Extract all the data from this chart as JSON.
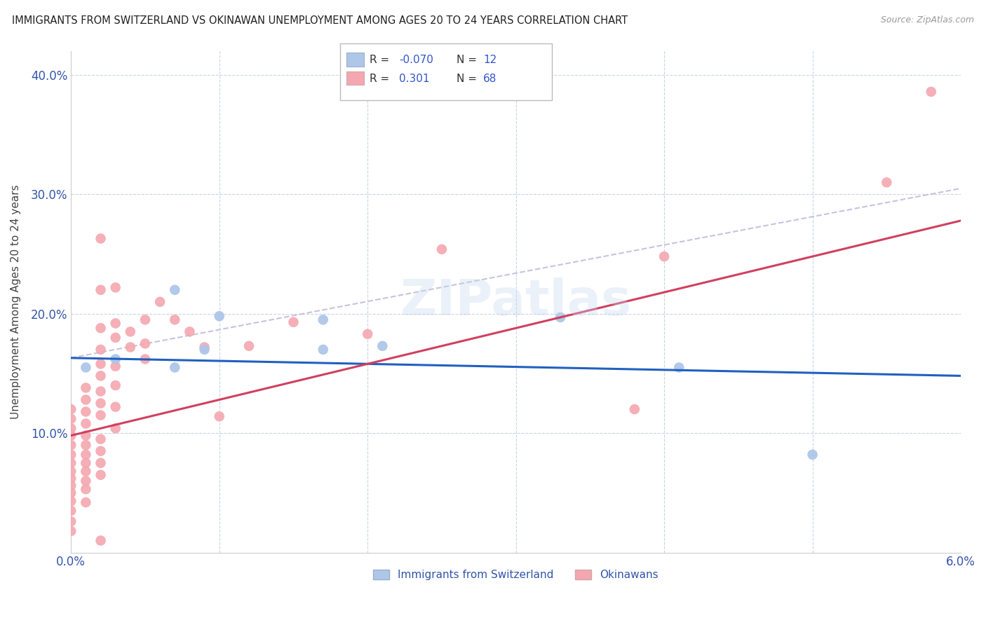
{
  "title": "IMMIGRANTS FROM SWITZERLAND VS OKINAWAN UNEMPLOYMENT AMONG AGES 20 TO 24 YEARS CORRELATION CHART",
  "source": "Source: ZipAtlas.com",
  "ylabel": "Unemployment Among Ages 20 to 24 years",
  "xlim": [
    0.0,
    0.06
  ],
  "ylim": [
    0.0,
    0.42
  ],
  "x_tick_labels": [
    "0.0%",
    "",
    "",
    "",
    "",
    "",
    "6.0%"
  ],
  "y_tick_labels": [
    "",
    "10.0%",
    "20.0%",
    "30.0%",
    "40.0%"
  ],
  "color_swiss": "#aec6e8",
  "color_okinawa": "#f4a7b0",
  "color_swiss_line": "#2060c0",
  "color_okinawa_line": "#d04060",
  "color_dashed": "#c0b8d8",
  "watermark": "ZIPatlas",
  "swiss_line": [
    0.0,
    0.06,
    0.163,
    0.148
  ],
  "okinawa_line": [
    0.0,
    0.06,
    0.098,
    0.278
  ],
  "dashed_line": [
    0.0,
    0.06,
    0.163,
    0.305
  ],
  "swiss_scatter": [
    [
      0.001,
      0.155
    ],
    [
      0.003,
      0.162
    ],
    [
      0.007,
      0.155
    ],
    [
      0.007,
      0.22
    ],
    [
      0.009,
      0.17
    ],
    [
      0.01,
      0.198
    ],
    [
      0.017,
      0.17
    ],
    [
      0.017,
      0.195
    ],
    [
      0.021,
      0.173
    ],
    [
      0.033,
      0.197
    ],
    [
      0.041,
      0.155
    ],
    [
      0.05,
      0.082
    ]
  ],
  "okinawa_scatter": [
    [
      0.0,
      0.12
    ],
    [
      0.0,
      0.112
    ],
    [
      0.0,
      0.104
    ],
    [
      0.0,
      0.098
    ],
    [
      0.0,
      0.09
    ],
    [
      0.0,
      0.082
    ],
    [
      0.0,
      0.075
    ],
    [
      0.0,
      0.068
    ],
    [
      0.0,
      0.062
    ],
    [
      0.0,
      0.056
    ],
    [
      0.0,
      0.05
    ],
    [
      0.0,
      0.043
    ],
    [
      0.0,
      0.035
    ],
    [
      0.0,
      0.026
    ],
    [
      0.0,
      0.018
    ],
    [
      0.001,
      0.138
    ],
    [
      0.001,
      0.128
    ],
    [
      0.001,
      0.118
    ],
    [
      0.001,
      0.108
    ],
    [
      0.001,
      0.098
    ],
    [
      0.001,
      0.09
    ],
    [
      0.001,
      0.082
    ],
    [
      0.001,
      0.075
    ],
    [
      0.001,
      0.068
    ],
    [
      0.001,
      0.06
    ],
    [
      0.001,
      0.053
    ],
    [
      0.001,
      0.042
    ],
    [
      0.002,
      0.263
    ],
    [
      0.002,
      0.22
    ],
    [
      0.002,
      0.188
    ],
    [
      0.002,
      0.17
    ],
    [
      0.002,
      0.158
    ],
    [
      0.002,
      0.148
    ],
    [
      0.002,
      0.135
    ],
    [
      0.002,
      0.125
    ],
    [
      0.002,
      0.115
    ],
    [
      0.002,
      0.095
    ],
    [
      0.002,
      0.085
    ],
    [
      0.002,
      0.075
    ],
    [
      0.002,
      0.065
    ],
    [
      0.002,
      0.01
    ],
    [
      0.003,
      0.222
    ],
    [
      0.003,
      0.192
    ],
    [
      0.003,
      0.18
    ],
    [
      0.003,
      0.156
    ],
    [
      0.003,
      0.14
    ],
    [
      0.003,
      0.122
    ],
    [
      0.003,
      0.104
    ],
    [
      0.004,
      0.185
    ],
    [
      0.004,
      0.172
    ],
    [
      0.005,
      0.195
    ],
    [
      0.005,
      0.175
    ],
    [
      0.005,
      0.162
    ],
    [
      0.006,
      0.21
    ],
    [
      0.007,
      0.195
    ],
    [
      0.008,
      0.185
    ],
    [
      0.009,
      0.172
    ],
    [
      0.01,
      0.114
    ],
    [
      0.012,
      0.173
    ],
    [
      0.015,
      0.193
    ],
    [
      0.02,
      0.183
    ],
    [
      0.025,
      0.254
    ],
    [
      0.038,
      0.12
    ],
    [
      0.04,
      0.248
    ],
    [
      0.055,
      0.31
    ],
    [
      0.058,
      0.386
    ]
  ]
}
